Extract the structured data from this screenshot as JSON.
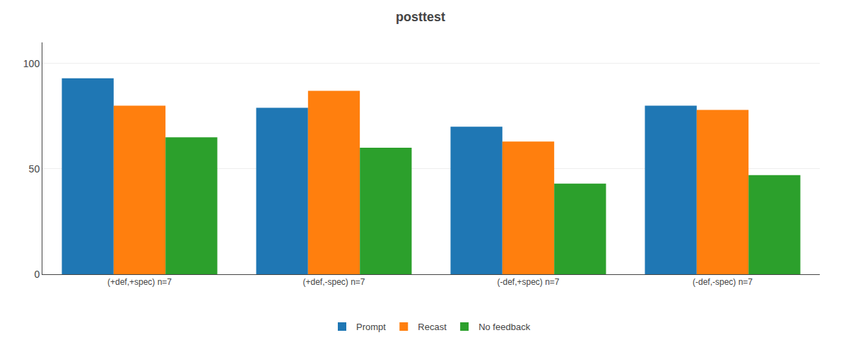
{
  "chart_data": {
    "type": "bar",
    "title": "posttest",
    "categories": [
      "(+def,+spec) n=7",
      "(+def,-spec) n=7",
      "(-def,+spec) n=7",
      "(-def,-spec) n=7"
    ],
    "series": [
      {
        "name": "Prompt",
        "values": [
          93,
          79,
          70,
          80
        ]
      },
      {
        "name": "Recast",
        "values": [
          80,
          87,
          63,
          78
        ]
      },
      {
        "name": "No feedback",
        "values": [
          65,
          60,
          43,
          47
        ]
      }
    ],
    "ylim": [
      0,
      110
    ],
    "yticks": [
      0,
      50,
      100
    ],
    "grid": true,
    "legend": "bottom"
  }
}
